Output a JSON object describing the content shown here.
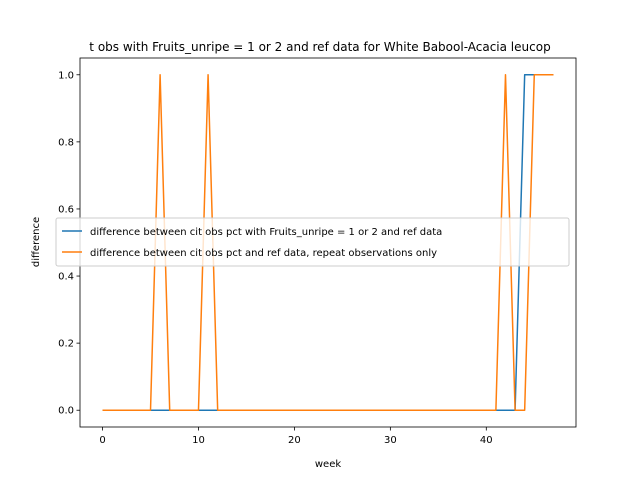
{
  "chart_data": {
    "type": "line",
    "title": "t obs with Fruits_unripe = 1 or 2 and ref data for White Babool-Acacia leucop",
    "xlabel": "week",
    "ylabel": "difference",
    "xlim": [
      -2.35,
      49.35
    ],
    "ylim": [
      -0.05,
      1.05
    ],
    "xticks": [
      0,
      10,
      20,
      30,
      40
    ],
    "yticks": [
      0.0,
      0.2,
      0.4,
      0.6,
      0.8,
      1.0
    ],
    "xtick_labels": [
      "0",
      "10",
      "20",
      "30",
      "40"
    ],
    "ytick_labels": [
      "0.0",
      "0.2",
      "0.4",
      "0.6",
      "0.8",
      "1.0"
    ],
    "grid": false,
    "legend_position": "center-right",
    "x": [
      0,
      1,
      2,
      3,
      4,
      5,
      6,
      7,
      8,
      9,
      10,
      11,
      12,
      13,
      14,
      15,
      16,
      17,
      18,
      19,
      20,
      21,
      22,
      23,
      24,
      25,
      26,
      27,
      28,
      29,
      30,
      31,
      32,
      33,
      34,
      35,
      36,
      37,
      38,
      39,
      40,
      41,
      42,
      43,
      44,
      45,
      46,
      47
    ],
    "series": [
      {
        "name": "difference between cit obs pct with Fruits_unripe = 1 or 2 and ref data",
        "color": "#1f77b4",
        "values": [
          0,
          0,
          0,
          0,
          0,
          0,
          0,
          0,
          0,
          0,
          0,
          0,
          0,
          0,
          0,
          0,
          0,
          0,
          0,
          0,
          0,
          0,
          0,
          0,
          0,
          0,
          0,
          0,
          0,
          0,
          0,
          0,
          0,
          0,
          0,
          0,
          0,
          0,
          0,
          0,
          0,
          0,
          0,
          0,
          1,
          1,
          1,
          1
        ]
      },
      {
        "name": "difference between cit obs pct and ref data, repeat observations only",
        "color": "#ff7f0e",
        "values": [
          0,
          0,
          0,
          0,
          0,
          0,
          1,
          0,
          0,
          0,
          0,
          1,
          0,
          0,
          0,
          0,
          0,
          0,
          0,
          0,
          0,
          0,
          0,
          0,
          0,
          0,
          0,
          0,
          0,
          0,
          0,
          0,
          0,
          0,
          0,
          0,
          0,
          0,
          0,
          0,
          0,
          0,
          1,
          0,
          0,
          1,
          1,
          1
        ]
      }
    ]
  }
}
